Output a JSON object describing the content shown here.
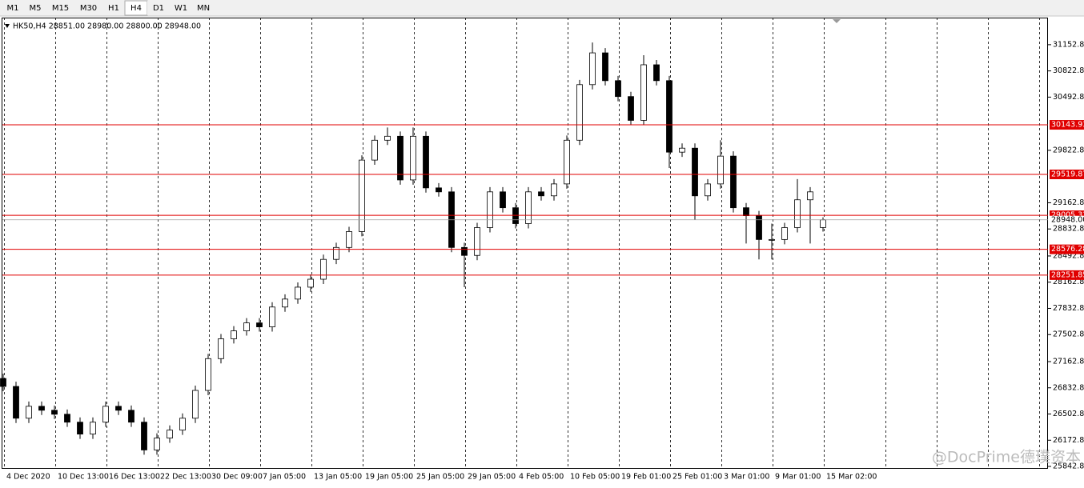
{
  "toolbar": {
    "buttons": [
      "M1",
      "M5",
      "M15",
      "M30",
      "H1",
      "H4",
      "D1",
      "W1",
      "MN"
    ],
    "active": 5
  },
  "chart_data": {
    "type": "candlestick",
    "info": "HK50,H4  28851.00 28980.00 28800.00 28948.00",
    "watermark": "@DocPrime德璞资本",
    "categories": [
      "4 Dec 2020",
      null,
      null,
      null,
      "10 Dec 13:00",
      null,
      null,
      null,
      "16 Dec 13:00",
      null,
      null,
      null,
      "22 Dec 13:00",
      null,
      null,
      null,
      "30 Dec 09:00",
      null,
      null,
      null,
      "7 Jan 05:00",
      null,
      null,
      null,
      "13 Jan 05:00",
      null,
      null,
      null,
      "19 Jan 05:00",
      null,
      null,
      null,
      "25 Jan 05:00",
      null,
      null,
      null,
      "29 Jan 05:00",
      null,
      null,
      null,
      "4 Feb 05:00",
      null,
      null,
      null,
      "10 Feb 05:00",
      null,
      null,
      null,
      "19 Feb 01:00",
      null,
      null,
      null,
      "25 Feb 01:00",
      null,
      null,
      null,
      "3 Mar 01:00",
      null,
      null,
      null,
      "9 Mar 01:00",
      null,
      null,
      null,
      "15 Mar 02:00"
    ],
    "open": [
      26950,
      26850,
      26450,
      26600,
      26550,
      26500,
      26400,
      26250,
      26400,
      26600,
      26550,
      26400,
      26050,
      26200,
      26300,
      26450,
      26800,
      27200,
      27450,
      27550,
      27650,
      27600,
      27850,
      27950,
      28100,
      28200,
      28450,
      28600,
      28800,
      29700,
      29950,
      30000,
      29450,
      30000,
      29350,
      29300,
      28600,
      28500,
      28850,
      29300,
      29100,
      28900,
      29300,
      29250,
      29400,
      29950,
      30650,
      31050,
      30700,
      30500,
      30200,
      30900,
      30700,
      29800,
      29850,
      29250,
      29400,
      29750,
      29100,
      29000,
      28700,
      28700,
      28850,
      29200,
      28851
    ],
    "high": [
      27010,
      26910,
      26660,
      26660,
      26610,
      26560,
      26460,
      26460,
      26660,
      26660,
      26610,
      26460,
      26260,
      26360,
      26510,
      26860,
      27260,
      27510,
      27610,
      27710,
      27710,
      27910,
      28010,
      28160,
      28260,
      28510,
      28660,
      28860,
      29760,
      30010,
      30110,
      30060,
      30110,
      30060,
      29410,
      29360,
      28660,
      28910,
      29360,
      29360,
      29160,
      29360,
      29360,
      29460,
      30010,
      30710,
      31180,
      31110,
      30760,
      30560,
      31020,
      30960,
      30760,
      29910,
      29910,
      29460,
      29950,
      29810,
      29160,
      29060,
      28900,
      28910,
      29460,
      29360,
      28980
    ],
    "low": [
      26790,
      26390,
      26390,
      26490,
      26440,
      26340,
      26190,
      26190,
      26340,
      26490,
      26340,
      25990,
      25990,
      26140,
      26240,
      26390,
      26740,
      27140,
      27390,
      27490,
      27540,
      27540,
      27790,
      27890,
      28040,
      28140,
      28390,
      28540,
      28740,
      29640,
      29890,
      29390,
      29390,
      29290,
      29240,
      28540,
      28100,
      28440,
      28790,
      29040,
      28840,
      28840,
      29190,
      29190,
      29340,
      29890,
      30590,
      30640,
      30440,
      30140,
      30140,
      30640,
      29600,
      29740,
      28950,
      29190,
      29340,
      29040,
      28650,
      28450,
      28450,
      28640,
      28790,
      28650,
      28800
    ],
    "close": [
      26850,
      26450,
      26600,
      26550,
      26500,
      26400,
      26250,
      26400,
      26600,
      26550,
      26400,
      26050,
      26200,
      26300,
      26450,
      26800,
      27200,
      27450,
      27550,
      27650,
      27600,
      27850,
      27950,
      28100,
      28200,
      28450,
      28600,
      28800,
      29700,
      29950,
      30000,
      29450,
      30000,
      29350,
      29300,
      28600,
      28500,
      28850,
      29300,
      29100,
      28900,
      29300,
      29250,
      29400,
      29950,
      30650,
      31050,
      30700,
      30500,
      30200,
      30900,
      30700,
      29800,
      29850,
      29250,
      29400,
      29750,
      29100,
      29000,
      28700,
      28700,
      28850,
      29200,
      29300,
      28948
    ],
    "ylim": [
      25823,
      31494
    ],
    "yticks": [
      {
        "value": 31152.8,
        "label": "31152.80"
      },
      {
        "value": 30822.8,
        "label": "30822.80"
      },
      {
        "value": 30492.8,
        "label": "30492.80"
      },
      {
        "value": 29822.8,
        "label": "29822.80"
      },
      {
        "value": 29162.8,
        "label": "29162.80"
      },
      {
        "value": 28832.8,
        "label": "28832.80"
      },
      {
        "value": 28492.8,
        "label": "28492.80"
      },
      {
        "value": 28162.8,
        "label": "28162.80"
      },
      {
        "value": 27832.8,
        "label": "27832.80"
      },
      {
        "value": 27502.8,
        "label": "27502.80"
      },
      {
        "value": 27162.8,
        "label": "27162.80"
      },
      {
        "value": 26832.8,
        "label": "26832.80"
      },
      {
        "value": 26502.8,
        "label": "26502.80"
      },
      {
        "value": 26172.8,
        "label": "26172.80"
      },
      {
        "value": 25842.8,
        "label": "25842.80"
      }
    ],
    "levels": [
      30143.93,
      29519.87,
      29005.31,
      28576.28,
      28251.85
    ],
    "level_color": "#e00000",
    "current_price": {
      "value": 28948,
      "label": "28948.00"
    },
    "grid": true
  }
}
